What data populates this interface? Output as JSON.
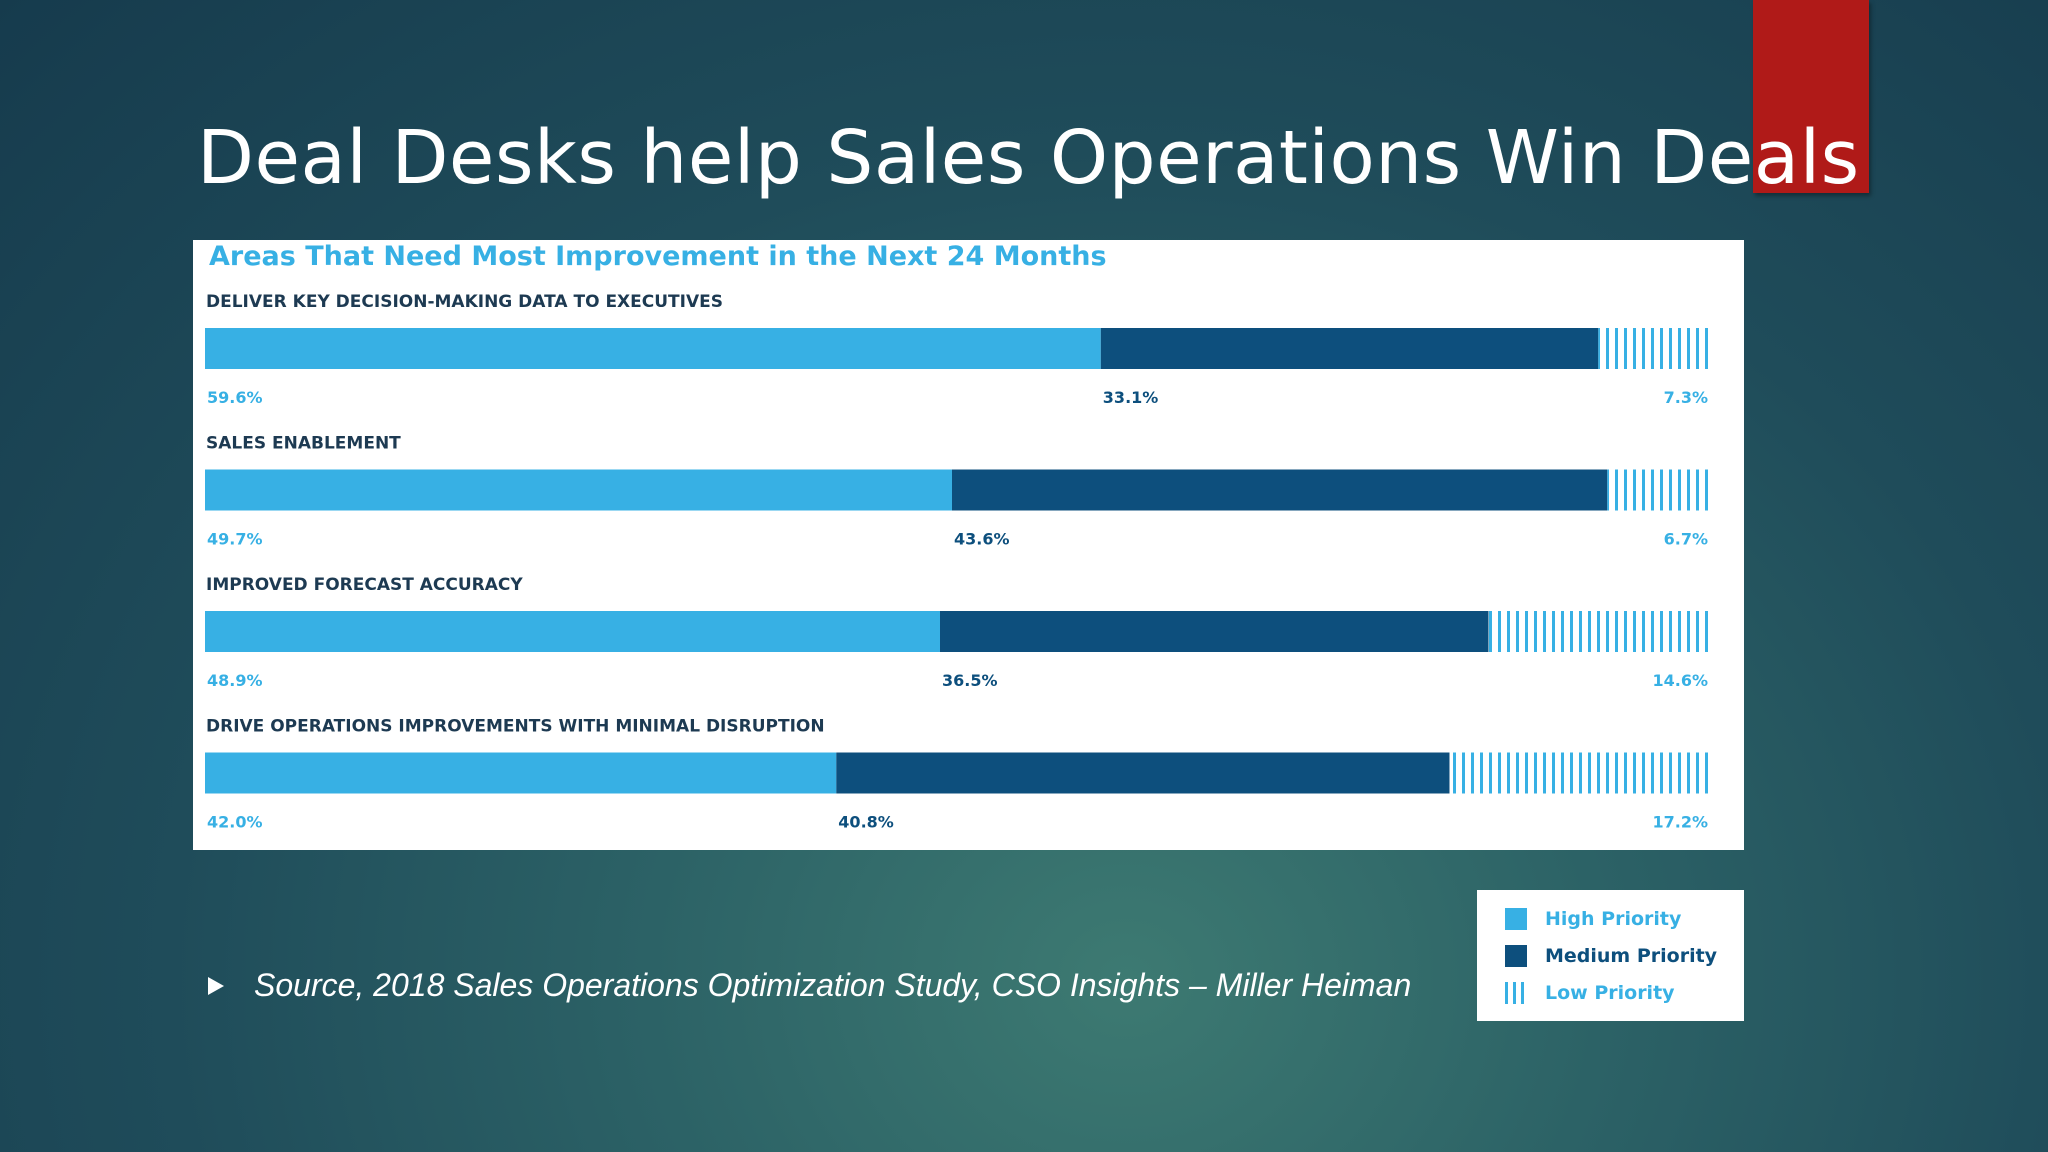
{
  "slide": {
    "title": "Deal Desks help Sales Operations Win Deals",
    "source": "Source, 2018 Sales Operations Optimization Study, CSO Insights – Miller Heiman",
    "bullet_icon": "triangle-bullet-icon",
    "accent_color": "#b01a18"
  },
  "chart_data": {
    "type": "bar",
    "orientation": "horizontal",
    "stacked": true,
    "title": "Areas That Need Most Improvement in the Next 24 Months",
    "categories": [
      "DELIVER KEY DECISION-MAKING DATA TO EXECUTIVES",
      "SALES ENABLEMENT",
      "IMPROVED FORECAST ACCURACY",
      "DRIVE OPERATIONS IMPROVEMENTS WITH MINIMAL DISRUPTION"
    ],
    "series": [
      {
        "name": "High Priority",
        "color": "#37b0e4",
        "values": [
          59.6,
          49.7,
          48.9,
          42.0
        ],
        "labels": [
          "59.6%",
          "49.7%",
          "48.9%",
          "42.0%"
        ]
      },
      {
        "name": "Medium Priority",
        "color": "#0d4f7d",
        "values": [
          33.1,
          43.6,
          36.5,
          40.8
        ],
        "labels": [
          "33.1%",
          "43.6%",
          "36.5%",
          "40.8%"
        ]
      },
      {
        "name": "Low Priority",
        "color": "#37b0e4",
        "pattern": "vertical-stripes",
        "values": [
          7.3,
          6.7,
          14.6,
          17.2
        ],
        "labels": [
          "7.3%",
          "6.7%",
          "14.6%",
          "17.2%"
        ]
      }
    ],
    "xlim": [
      0,
      100
    ],
    "legend_position": "bottom-right",
    "grid": false
  }
}
